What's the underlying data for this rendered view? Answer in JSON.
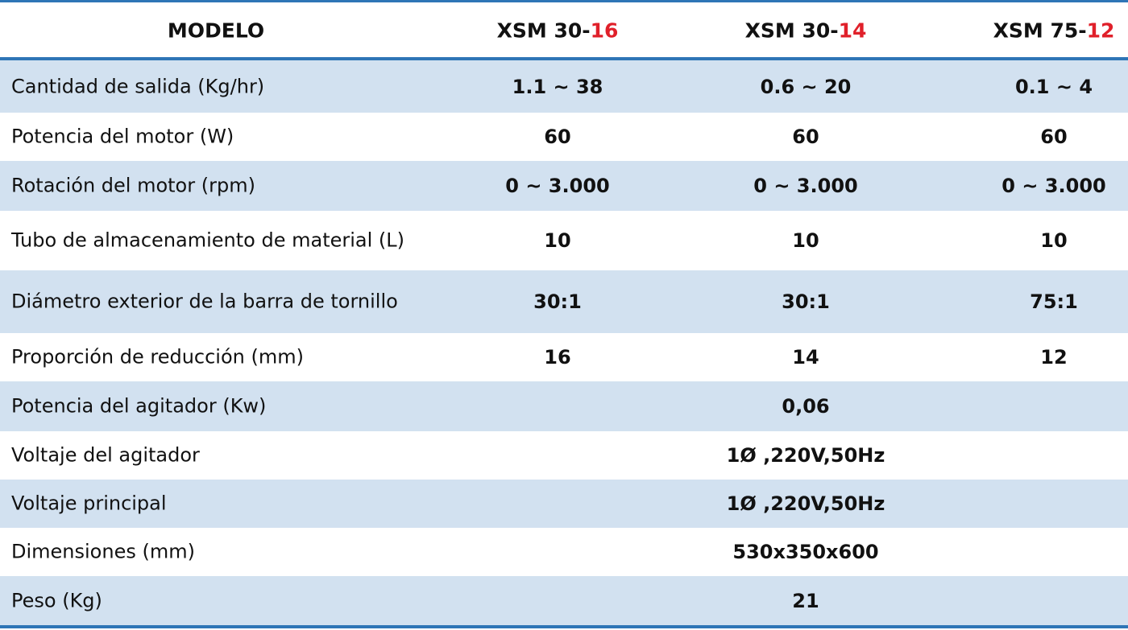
{
  "header": {
    "label": "MODELO",
    "models": [
      {
        "base": "XSM 30-",
        "highlight": "16"
      },
      {
        "base": "XSM 30-",
        "highlight": "14"
      },
      {
        "base": "XSM 75-",
        "highlight": "12"
      }
    ]
  },
  "rows": [
    {
      "label": "Cantidad de salida (Kg/hr)",
      "values": [
        "1.1 ~ 38",
        "0.6 ~ 20",
        "0.1 ~ 4"
      ]
    },
    {
      "label": "Potencia del motor (W)",
      "values": [
        "60",
        "60",
        "60"
      ]
    },
    {
      "label": "Rotación del motor (rpm)",
      "values": [
        "0 ~ 3.000",
        "0 ~ 3.000",
        "0 ~ 3.000"
      ]
    },
    {
      "label": "Tubo de almacenamiento de material (L)",
      "values": [
        "10",
        "10",
        "10"
      ]
    },
    {
      "label": "Diámetro exterior de la barra de tornillo",
      "values": [
        "30:1",
        "30:1",
        "75:1"
      ]
    },
    {
      "label": "Proporción de reducción (mm)",
      "values": [
        "16",
        "14",
        "12"
      ]
    },
    {
      "label": "Potencia del agitador (Kw)",
      "values": [
        "0,06"
      ]
    },
    {
      "label": "Voltaje del agitador",
      "values": [
        "1Ø ,220V,50Hz"
      ]
    },
    {
      "label": "Voltaje principal",
      "values": [
        "1Ø ,220V,50Hz"
      ]
    },
    {
      "label": "Dimensiones (mm)",
      "values": [
        "530x350x600"
      ]
    },
    {
      "label": "Peso (Kg)",
      "values": [
        "21"
      ]
    }
  ]
}
